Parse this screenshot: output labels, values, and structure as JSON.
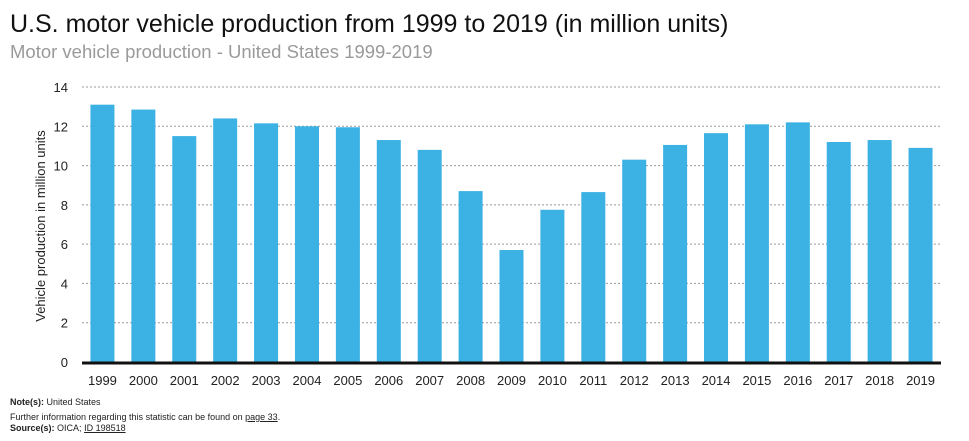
{
  "chart_data": {
    "type": "bar",
    "title": "U.S. motor vehicle production from 1999 to 2019 (in million units)",
    "subtitle": "Motor vehicle production - United States 1999-2019",
    "xlabel": "",
    "ylabel": "Vehicle production in million units",
    "ylim": [
      0,
      14
    ],
    "yticks": [
      0,
      2,
      4,
      6,
      8,
      10,
      12,
      14
    ],
    "grid": true,
    "bar_color": "#3bb1e4",
    "categories": [
      "1999",
      "2000",
      "2001",
      "2002",
      "2003",
      "2004",
      "2005",
      "2006",
      "2007",
      "2008",
      "2009",
      "2010",
      "2011",
      "2012",
      "2013",
      "2014",
      "2015",
      "2016",
      "2017",
      "2018",
      "2019"
    ],
    "values": [
      13.1,
      12.85,
      11.5,
      12.4,
      12.15,
      12.0,
      11.95,
      11.3,
      10.8,
      8.7,
      5.7,
      7.75,
      8.65,
      10.3,
      11.05,
      11.65,
      12.1,
      12.2,
      11.2,
      11.3,
      10.9
    ]
  },
  "footer": {
    "note_label": "Note(s):",
    "note_text": "United States",
    "further_info_text": "Further information regarding this statistic can be found on",
    "page_link": "page 33",
    "period": ".",
    "source_label": "Source(s):",
    "source_text": "OICA;",
    "id_link": "ID 198518"
  }
}
